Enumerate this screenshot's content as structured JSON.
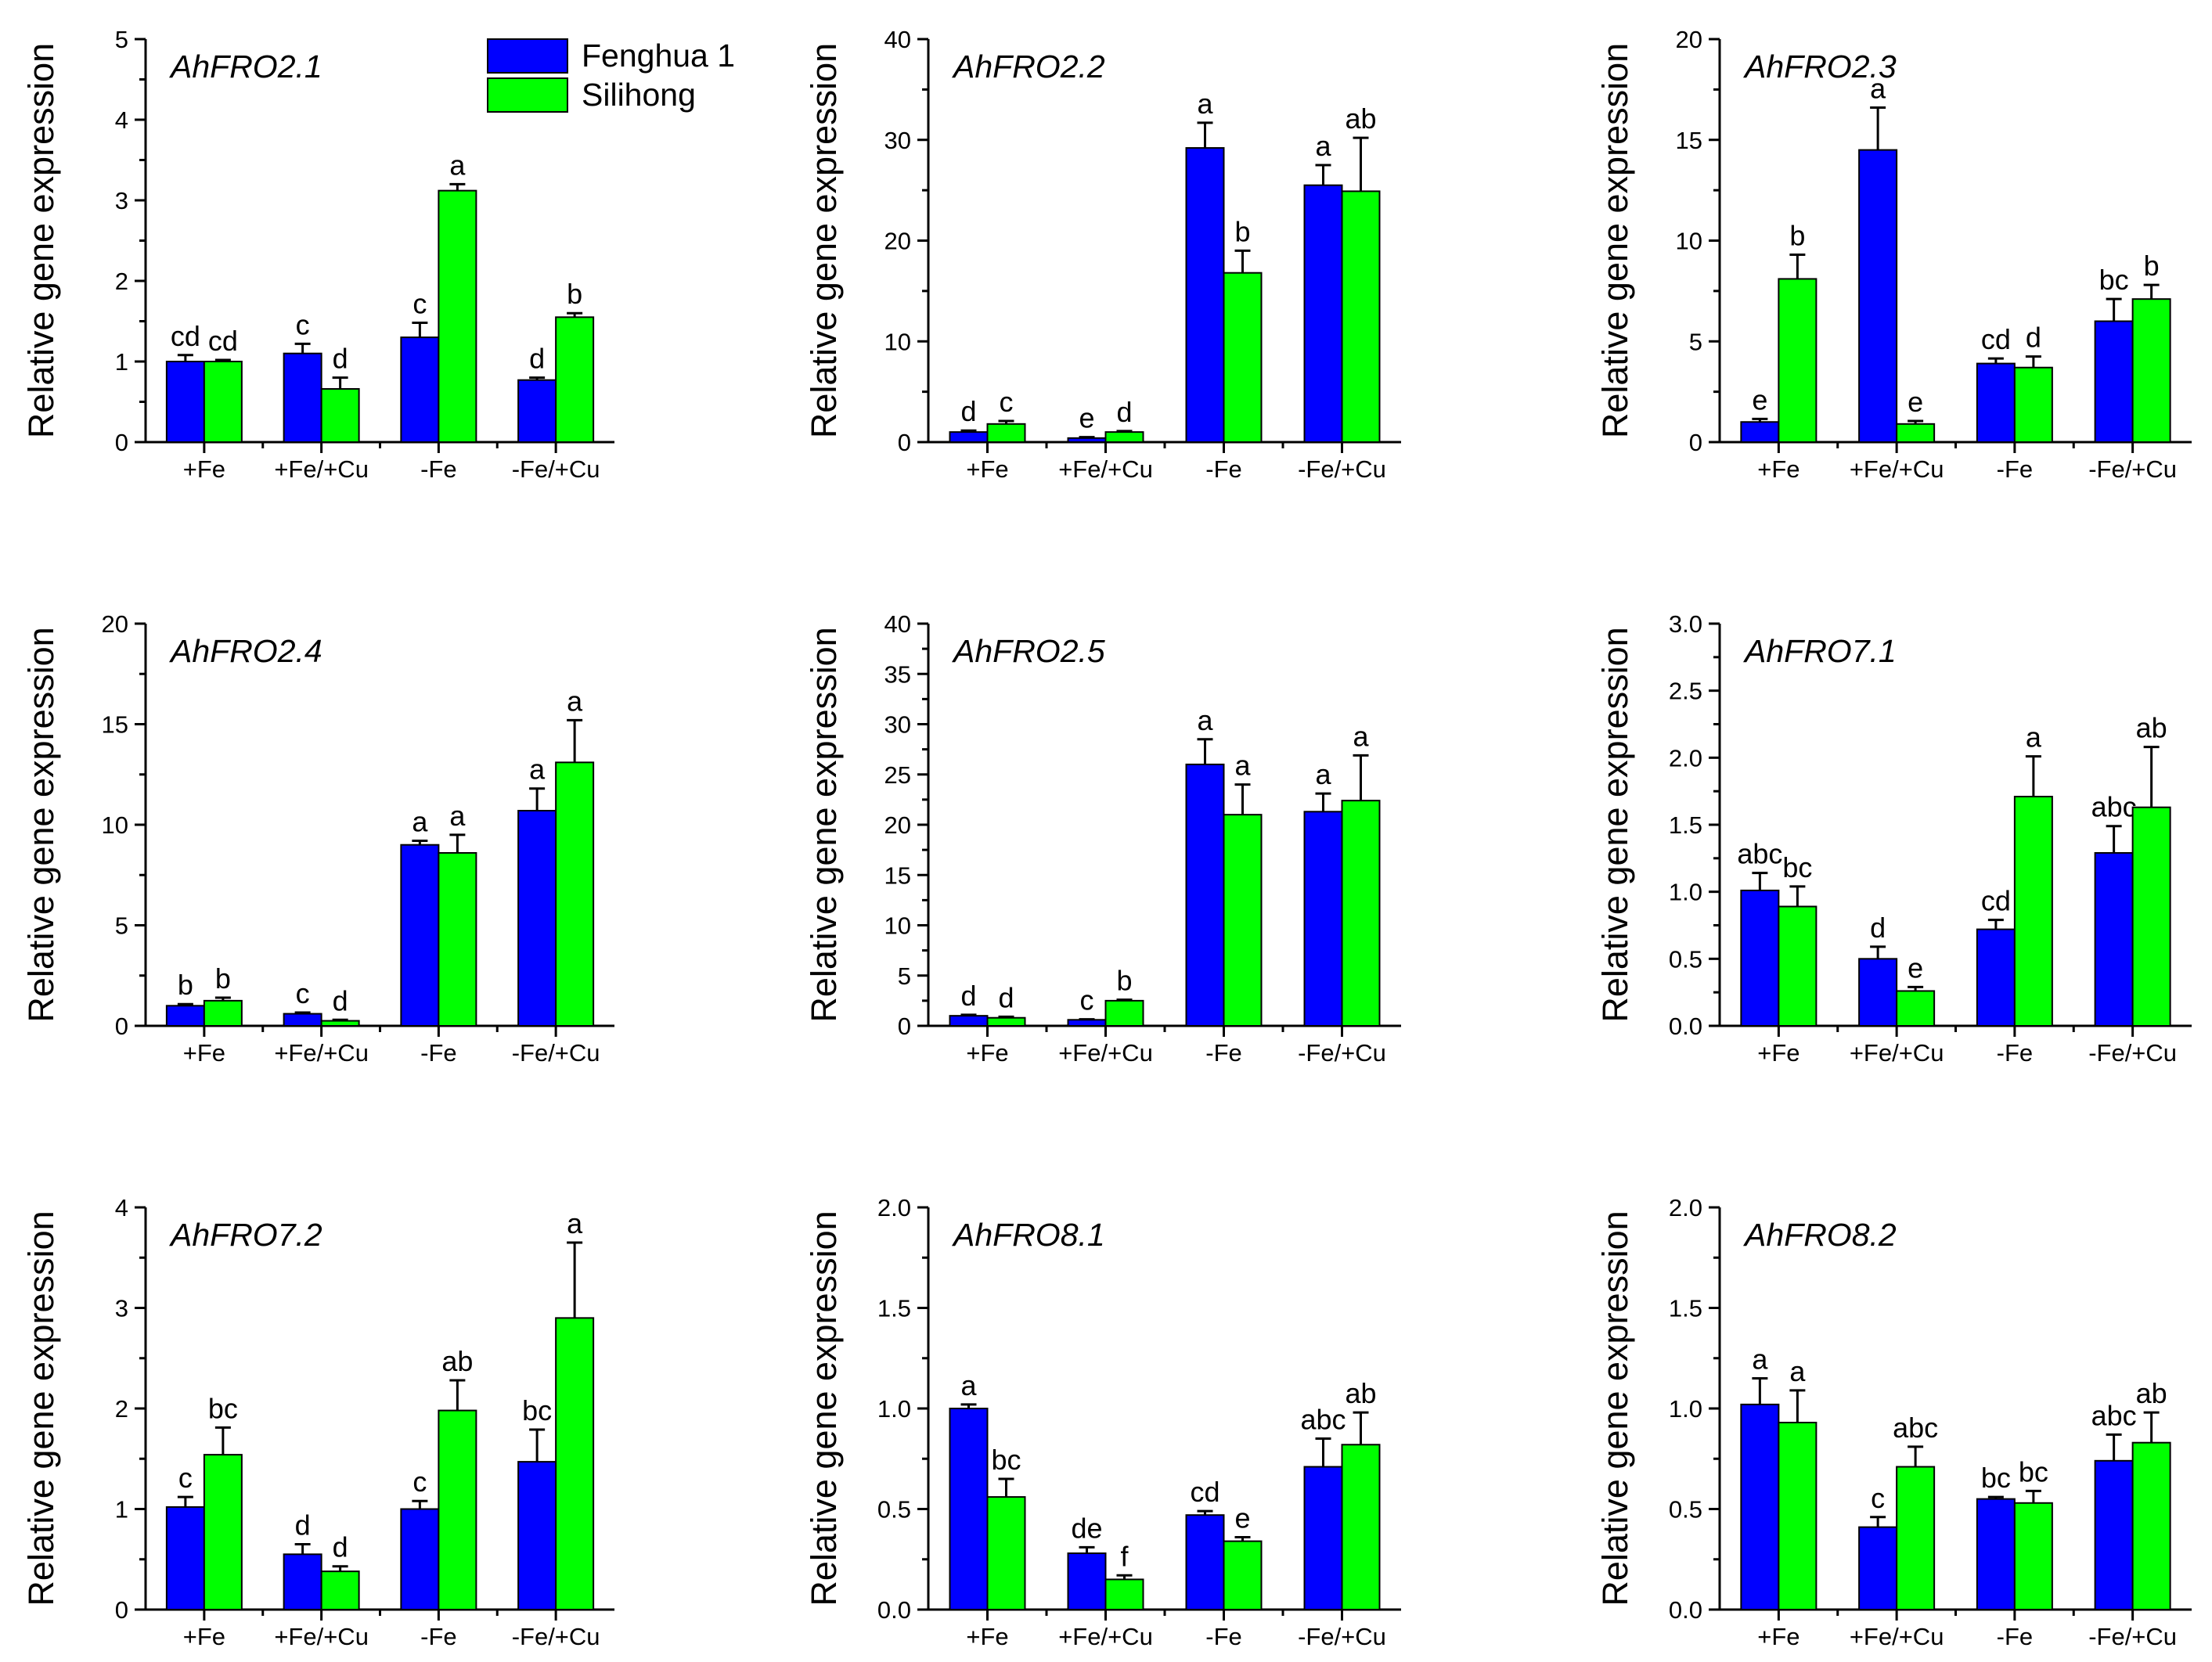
{
  "figure": {
    "legend": [
      {
        "name": "Fenghua 1",
        "color": "#0000ff"
      },
      {
        "name": "Silihong",
        "color": "#00ff00"
      }
    ],
    "ylabel": "Relative gene expression",
    "categories": [
      "+Fe",
      "+Fe/+Cu",
      "-Fe",
      "-Fe/+Cu"
    ]
  },
  "chart_data": [
    {
      "type": "bar",
      "title": "AhFRO2.1",
      "ylabel": "Relative gene expression",
      "xlabel": "",
      "categories": [
        "+Fe",
        "+Fe/+Cu",
        "-Fe",
        "-Fe/+Cu"
      ],
      "ylim": [
        0,
        5
      ],
      "yticks": [
        "0",
        "1",
        "2",
        "3",
        "4",
        "5"
      ],
      "minor_per_major": 1,
      "legend": true,
      "series": [
        {
          "name": "Fenghua 1",
          "color": "#0000ff",
          "values": [
            1.0,
            1.1,
            1.3,
            0.77
          ],
          "errors": [
            0.08,
            0.12,
            0.18,
            0.03
          ],
          "labels": [
            "cd",
            "c",
            "c",
            "d"
          ]
        },
        {
          "name": "Silihong",
          "color": "#00ff00",
          "values": [
            1.0,
            0.66,
            3.12,
            1.55
          ],
          "errors": [
            0.02,
            0.14,
            0.08,
            0.05
          ],
          "labels": [
            "cd",
            "d",
            "a",
            "b"
          ]
        }
      ]
    },
    {
      "type": "bar",
      "title": "AhFRO2.2",
      "ylabel": "Relative gene expression",
      "xlabel": "",
      "categories": [
        "+Fe",
        "+Fe/+Cu",
        "-Fe",
        "-Fe/+Cu"
      ],
      "ylim": [
        0,
        40
      ],
      "yticks": [
        "0",
        "10",
        "20",
        "30",
        "40"
      ],
      "minor_per_major": 1,
      "legend": false,
      "series": [
        {
          "name": "Fenghua 1",
          "color": "#0000ff",
          "values": [
            1.0,
            0.4,
            29.2,
            25.5
          ],
          "errors": [
            0.15,
            0.1,
            2.5,
            2.0
          ],
          "labels": [
            "d",
            "e",
            "a",
            "a"
          ]
        },
        {
          "name": "Silihong",
          "color": "#00ff00",
          "values": [
            1.8,
            1.0,
            16.8,
            24.9
          ],
          "errors": [
            0.3,
            0.1,
            2.2,
            5.3
          ],
          "labels": [
            "c",
            "d",
            "b",
            "ab"
          ]
        }
      ]
    },
    {
      "type": "bar",
      "title": "AhFRO2.3",
      "ylabel": "Relative gene expression",
      "xlabel": "",
      "categories": [
        "+Fe",
        "+Fe/+Cu",
        "-Fe",
        "-Fe/+Cu"
      ],
      "ylim": [
        0,
        20
      ],
      "yticks": [
        "0",
        "5",
        "10",
        "15",
        "20"
      ],
      "minor_per_major": 1,
      "legend": false,
      "series": [
        {
          "name": "Fenghua 1",
          "color": "#0000ff",
          "values": [
            1.0,
            14.5,
            3.9,
            6.0
          ],
          "errors": [
            0.15,
            2.1,
            0.25,
            1.1
          ],
          "labels": [
            "e",
            "a",
            "cd",
            "bc"
          ]
        },
        {
          "name": "Silihong",
          "color": "#00ff00",
          "values": [
            8.1,
            0.9,
            3.7,
            7.1
          ],
          "errors": [
            1.2,
            0.15,
            0.55,
            0.7
          ],
          "labels": [
            "b",
            "e",
            "d",
            "b"
          ]
        }
      ]
    },
    {
      "type": "bar",
      "title": "AhFRO2.4",
      "ylabel": "Relative gene expression",
      "xlabel": "",
      "categories": [
        "+Fe",
        "+Fe/+Cu",
        "-Fe",
        "-Fe/+Cu"
      ],
      "ylim": [
        0,
        20
      ],
      "yticks": [
        "0",
        "5",
        "10",
        "15",
        "20"
      ],
      "minor_per_major": 1,
      "legend": false,
      "series": [
        {
          "name": "Fenghua 1",
          "color": "#0000ff",
          "values": [
            1.0,
            0.6,
            9.0,
            10.7
          ],
          "errors": [
            0.08,
            0.06,
            0.2,
            1.1
          ],
          "labels": [
            "b",
            "c",
            "a",
            "a"
          ]
        },
        {
          "name": "Silihong",
          "color": "#00ff00",
          "values": [
            1.25,
            0.25,
            8.6,
            13.1
          ],
          "errors": [
            0.15,
            0.05,
            0.9,
            2.1
          ],
          "labels": [
            "b",
            "d",
            "a",
            "a"
          ]
        }
      ]
    },
    {
      "type": "bar",
      "title": "AhFRO2.5",
      "ylabel": "Relative gene expression",
      "xlabel": "",
      "categories": [
        "+Fe",
        "+Fe/+Cu",
        "-Fe",
        "-Fe/+Cu"
      ],
      "ylim": [
        0,
        40
      ],
      "yticks": [
        "0",
        "5",
        "10",
        "15",
        "20",
        "25",
        "30",
        "35",
        "40"
      ],
      "minor_per_major": 1,
      "legend": false,
      "series": [
        {
          "name": "Fenghua 1",
          "color": "#0000ff",
          "values": [
            1.0,
            0.6,
            26.0,
            21.3
          ],
          "errors": [
            0.1,
            0.05,
            2.5,
            1.8
          ],
          "labels": [
            "d",
            "c",
            "a",
            "a"
          ]
        },
        {
          "name": "Silihong",
          "color": "#00ff00",
          "values": [
            0.8,
            2.5,
            21.0,
            22.4
          ],
          "errors": [
            0.1,
            0.1,
            3.0,
            4.5
          ],
          "labels": [
            "d",
            "b",
            "a",
            "a"
          ]
        }
      ]
    },
    {
      "type": "bar",
      "title": "AhFRO7.1",
      "ylabel": "Relative gene expression",
      "xlabel": "",
      "categories": [
        "+Fe",
        "+Fe/+Cu",
        "-Fe",
        "-Fe/+Cu"
      ],
      "ylim": [
        0,
        3.0
      ],
      "yticks": [
        "0.0",
        "0.5",
        "1.0",
        "1.5",
        "2.0",
        "2.5",
        "3.0"
      ],
      "minor_per_major": 1,
      "legend": false,
      "series": [
        {
          "name": "Fenghua 1",
          "color": "#0000ff",
          "values": [
            1.01,
            0.5,
            0.72,
            1.29
          ],
          "errors": [
            0.13,
            0.09,
            0.07,
            0.2
          ],
          "labels": [
            "abc",
            "d",
            "cd",
            "abc"
          ]
        },
        {
          "name": "Silihong",
          "color": "#00ff00",
          "values": [
            0.89,
            0.26,
            1.71,
            1.63
          ],
          "errors": [
            0.15,
            0.03,
            0.3,
            0.45
          ],
          "labels": [
            "bc",
            "e",
            "a",
            "ab"
          ]
        }
      ]
    },
    {
      "type": "bar",
      "title": "AhFRO7.2",
      "ylabel": "Relative gene expression",
      "xlabel": "",
      "categories": [
        "+Fe",
        "+Fe/+Cu",
        "-Fe",
        "-Fe/+Cu"
      ],
      "ylim": [
        0,
        4
      ],
      "yticks": [
        "0",
        "1",
        "2",
        "3",
        "4"
      ],
      "minor_per_major": 1,
      "legend": false,
      "series": [
        {
          "name": "Fenghua 1",
          "color": "#0000ff",
          "values": [
            1.02,
            0.55,
            1.0,
            1.47
          ],
          "errors": [
            0.1,
            0.1,
            0.08,
            0.32
          ],
          "labels": [
            "c",
            "d",
            "c",
            "bc"
          ]
        },
        {
          "name": "Silihong",
          "color": "#00ff00",
          "values": [
            1.54,
            0.38,
            1.98,
            2.9
          ],
          "errors": [
            0.27,
            0.05,
            0.3,
            0.75
          ],
          "labels": [
            "bc",
            "d",
            "ab",
            "a"
          ]
        }
      ]
    },
    {
      "type": "bar",
      "title": "AhFRO8.1",
      "ylabel": "Relative gene expression",
      "xlabel": "",
      "categories": [
        "+Fe",
        "+Fe/+Cu",
        "-Fe",
        "-Fe/+Cu"
      ],
      "ylim": [
        0,
        2.0
      ],
      "yticks": [
        "0.0",
        "0.5",
        "1.0",
        "1.5",
        "2.0"
      ],
      "minor_per_major": 1,
      "legend": false,
      "series": [
        {
          "name": "Fenghua 1",
          "color": "#0000ff",
          "values": [
            1.0,
            0.28,
            0.47,
            0.71
          ],
          "errors": [
            0.02,
            0.03,
            0.02,
            0.14
          ],
          "labels": [
            "a",
            "de",
            "cd",
            "abc"
          ]
        },
        {
          "name": "Silihong",
          "color": "#00ff00",
          "values": [
            0.56,
            0.15,
            0.34,
            0.82
          ],
          "errors": [
            0.09,
            0.02,
            0.02,
            0.16
          ],
          "labels": [
            "bc",
            "f",
            "e",
            "ab"
          ]
        }
      ]
    },
    {
      "type": "bar",
      "title": "AhFRO8.2",
      "ylabel": "Relative gene expression",
      "xlabel": "",
      "categories": [
        "+Fe",
        "+Fe/+Cu",
        "-Fe",
        "-Fe/+Cu"
      ],
      "ylim": [
        0,
        2.0
      ],
      "yticks": [
        "0.0",
        "0.5",
        "1.0",
        "1.5",
        "2.0"
      ],
      "minor_per_major": 1,
      "legend": false,
      "series": [
        {
          "name": "Fenghua 1",
          "color": "#0000ff",
          "values": [
            1.02,
            0.41,
            0.55,
            0.74
          ],
          "errors": [
            0.13,
            0.05,
            0.01,
            0.13
          ],
          "labels": [
            "a",
            "c",
            "bc",
            "abc"
          ]
        },
        {
          "name": "Silihong",
          "color": "#00ff00",
          "values": [
            0.93,
            0.71,
            0.53,
            0.83
          ],
          "errors": [
            0.16,
            0.1,
            0.06,
            0.15
          ],
          "labels": [
            "a",
            "abc",
            "bc",
            "ab"
          ]
        }
      ]
    }
  ]
}
